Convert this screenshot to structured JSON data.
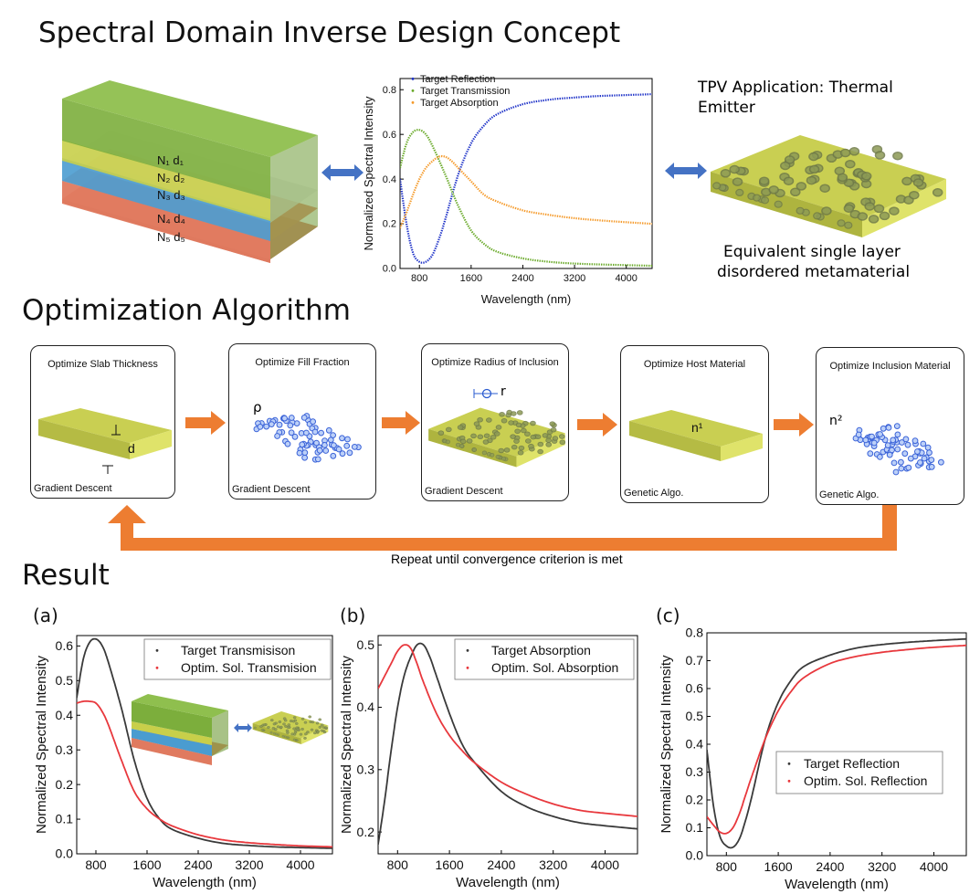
{
  "sections": {
    "concept_title": "Spectral Domain Inverse Design Concept",
    "optimization_title": "Optimization Algorithm",
    "result_title": "Result"
  },
  "stack": {
    "layers": [
      {
        "n": "N₁ d₁",
        "color": "#7cae3c"
      },
      {
        "n": "N₂ d₂",
        "color": "#c8cf4a"
      },
      {
        "n": "N₃ d₃",
        "color": "#4a9cd0"
      },
      {
        "n": "N₄ d₄",
        "color": "#e07a5f"
      },
      {
        "n": "N₅ d₅",
        "color": "#e07a5f"
      }
    ]
  },
  "tpv": {
    "title_line1": "TPV Application: Thermal",
    "title_line2": "Emitter",
    "caption_line1": "Equivalent single layer",
    "caption_line2": "disordered metamaterial"
  },
  "steps": [
    {
      "title": "Optimize Slab Thickness",
      "method": "Gradient Descent",
      "symbol": "d"
    },
    {
      "title": "Optimize Fill Fraction",
      "method": "Gradient Descent",
      "symbol": "ρ"
    },
    {
      "title": "Optimize Radius of Inclusion",
      "method": "Gradient Descent",
      "symbol": "r"
    },
    {
      "title": "Optimize Host Material",
      "method": "Genetic Algo.",
      "symbol": "n¹"
    },
    {
      "title": "Optimize Inclusion Material",
      "method": "Genetic Algo.",
      "symbol": "n²"
    }
  ],
  "loop_caption": "Repeat until convergence criterion is met",
  "panel_labels": [
    "(a)",
    "(b)",
    "(c)"
  ],
  "colors": {
    "reflection": "#1f33c8",
    "transmission": "#6aaa2a",
    "absorption": "#f59a2a",
    "target_dark": "#3a3a3a",
    "optim_red": "#e8383d",
    "arrow_orange": "#ed7d31",
    "arrow_blue": "#4472c4"
  },
  "chart_data": [
    {
      "type": "line",
      "id": "concept",
      "xlabel": "Wavelength (nm)",
      "ylabel": "Normalized Spectral Intensity",
      "xlim": [
        500,
        4400
      ],
      "ylim": [
        0,
        0.85
      ],
      "xticks": [
        800,
        1600,
        2400,
        3200,
        4000
      ],
      "yticks": [
        0.0,
        0.2,
        0.4,
        0.6,
        0.8
      ],
      "legend_position": "top",
      "series": [
        {
          "name": "Target Reflection",
          "color": "#1f33c8",
          "x": [
            500,
            600,
            700,
            800,
            900,
            1000,
            1100,
            1200,
            1400,
            1600,
            1800,
            2000,
            2400,
            2800,
            3200,
            3600,
            4000,
            4400
          ],
          "y": [
            0.4,
            0.2,
            0.07,
            0.03,
            0.03,
            0.06,
            0.13,
            0.22,
            0.42,
            0.56,
            0.64,
            0.69,
            0.735,
            0.755,
            0.765,
            0.772,
            0.776,
            0.78
          ]
        },
        {
          "name": "Target Transmission",
          "color": "#6aaa2a",
          "x": [
            500,
            600,
            700,
            800,
            900,
            1000,
            1200,
            1400,
            1600,
            1800,
            2000,
            2400,
            2800,
            3200,
            3600,
            4000,
            4400
          ],
          "y": [
            0.45,
            0.56,
            0.61,
            0.62,
            0.6,
            0.55,
            0.42,
            0.28,
            0.17,
            0.11,
            0.075,
            0.045,
            0.03,
            0.022,
            0.018,
            0.015,
            0.012
          ]
        },
        {
          "name": "Target Absorption",
          "color": "#f59a2a",
          "x": [
            500,
            600,
            700,
            800,
            900,
            1000,
            1100,
            1200,
            1300,
            1400,
            1600,
            1800,
            2000,
            2400,
            2800,
            3200,
            3600,
            4000,
            4400
          ],
          "y": [
            0.18,
            0.25,
            0.33,
            0.4,
            0.45,
            0.48,
            0.5,
            0.5,
            0.48,
            0.45,
            0.39,
            0.33,
            0.3,
            0.26,
            0.24,
            0.225,
            0.215,
            0.207,
            0.2
          ]
        }
      ]
    },
    {
      "type": "line",
      "id": "a",
      "xlabel": "Wavelength (nm)",
      "ylabel": "Normalized Spectral Intensity",
      "xlim": [
        500,
        4500
      ],
      "ylim": [
        0.0,
        0.63
      ],
      "xticks": [
        800,
        1600,
        2400,
        3200,
        4000
      ],
      "yticks": [
        0.0,
        0.1,
        0.2,
        0.3,
        0.4,
        0.5,
        0.6
      ],
      "legend_position": "top-right",
      "series": [
        {
          "name": "Target Transmisison",
          "color": "#3a3a3a",
          "x": [
            500,
            600,
            700,
            800,
            900,
            1000,
            1200,
            1400,
            1600,
            1800,
            2000,
            2400,
            2800,
            3200,
            3600,
            4000,
            4500
          ],
          "y": [
            0.45,
            0.56,
            0.61,
            0.62,
            0.6,
            0.55,
            0.42,
            0.27,
            0.16,
            0.1,
            0.07,
            0.045,
            0.03,
            0.024,
            0.02,
            0.018,
            0.016
          ]
        },
        {
          "name": "Optim. Sol. Transmision",
          "color": "#e8383d",
          "x": [
            500,
            600,
            700,
            800,
            900,
            1000,
            1200,
            1400,
            1600,
            1800,
            2000,
            2400,
            2800,
            3200,
            3600,
            4000,
            4500
          ],
          "y": [
            0.435,
            0.44,
            0.44,
            0.435,
            0.41,
            0.37,
            0.27,
            0.18,
            0.13,
            0.1,
            0.08,
            0.055,
            0.04,
            0.032,
            0.027,
            0.023,
            0.02
          ]
        }
      ]
    },
    {
      "type": "line",
      "id": "b",
      "xlabel": "Wavelength (nm)",
      "ylabel": "Normalized Spectral Intensity",
      "xlim": [
        500,
        4500
      ],
      "ylim": [
        0.165,
        0.515
      ],
      "xticks": [
        800,
        1600,
        2400,
        3200,
        4000
      ],
      "yticks": [
        0.2,
        0.3,
        0.4,
        0.5
      ],
      "legend_position": "top-right",
      "series": [
        {
          "name": "Target Absorption",
          "color": "#3a3a3a",
          "x": [
            500,
            600,
            700,
            800,
            900,
            1000,
            1100,
            1200,
            1300,
            1400,
            1600,
            1800,
            2000,
            2400,
            2800,
            3200,
            3600,
            4000,
            4500
          ],
          "y": [
            0.18,
            0.25,
            0.33,
            0.4,
            0.45,
            0.48,
            0.5,
            0.5,
            0.48,
            0.45,
            0.39,
            0.34,
            0.31,
            0.265,
            0.24,
            0.225,
            0.215,
            0.21,
            0.205
          ]
        },
        {
          "name": "Optim. Sol. Absorption",
          "color": "#e8383d",
          "x": [
            500,
            600,
            700,
            800,
            900,
            1000,
            1100,
            1200,
            1400,
            1600,
            1800,
            2000,
            2400,
            2800,
            3200,
            3600,
            4000,
            4500
          ],
          "y": [
            0.43,
            0.45,
            0.47,
            0.49,
            0.5,
            0.495,
            0.47,
            0.44,
            0.39,
            0.355,
            0.33,
            0.31,
            0.28,
            0.26,
            0.245,
            0.235,
            0.23,
            0.225
          ]
        }
      ]
    },
    {
      "type": "line",
      "id": "c",
      "xlabel": "Wavelength (nm)",
      "ylabel": "Normalized Spectral Intensity",
      "xlim": [
        500,
        4500
      ],
      "ylim": [
        0.0,
        0.8
      ],
      "xticks": [
        800,
        1600,
        2400,
        3200,
        4000
      ],
      "yticks": [
        0.0,
        0.1,
        0.2,
        0.3,
        0.4,
        0.5,
        0.6,
        0.7,
        0.8
      ],
      "legend_position": "middle-right",
      "series": [
        {
          "name": "Target Reflection",
          "color": "#3a3a3a",
          "x": [
            500,
            600,
            700,
            800,
            900,
            1000,
            1100,
            1200,
            1400,
            1600,
            1800,
            2000,
            2400,
            2800,
            3200,
            3600,
            4000,
            4500
          ],
          "y": [
            0.38,
            0.18,
            0.07,
            0.035,
            0.03,
            0.06,
            0.13,
            0.22,
            0.42,
            0.55,
            0.63,
            0.68,
            0.72,
            0.745,
            0.758,
            0.766,
            0.772,
            0.778
          ]
        },
        {
          "name": "Optim. Sol. Reflection",
          "color": "#e8383d",
          "x": [
            500,
            600,
            700,
            800,
            900,
            1000,
            1100,
            1200,
            1400,
            1600,
            1800,
            2000,
            2400,
            2800,
            3200,
            3600,
            4000,
            4500
          ],
          "y": [
            0.14,
            0.11,
            0.085,
            0.08,
            0.1,
            0.15,
            0.22,
            0.29,
            0.42,
            0.52,
            0.59,
            0.64,
            0.69,
            0.715,
            0.73,
            0.74,
            0.748,
            0.755
          ]
        }
      ]
    }
  ]
}
